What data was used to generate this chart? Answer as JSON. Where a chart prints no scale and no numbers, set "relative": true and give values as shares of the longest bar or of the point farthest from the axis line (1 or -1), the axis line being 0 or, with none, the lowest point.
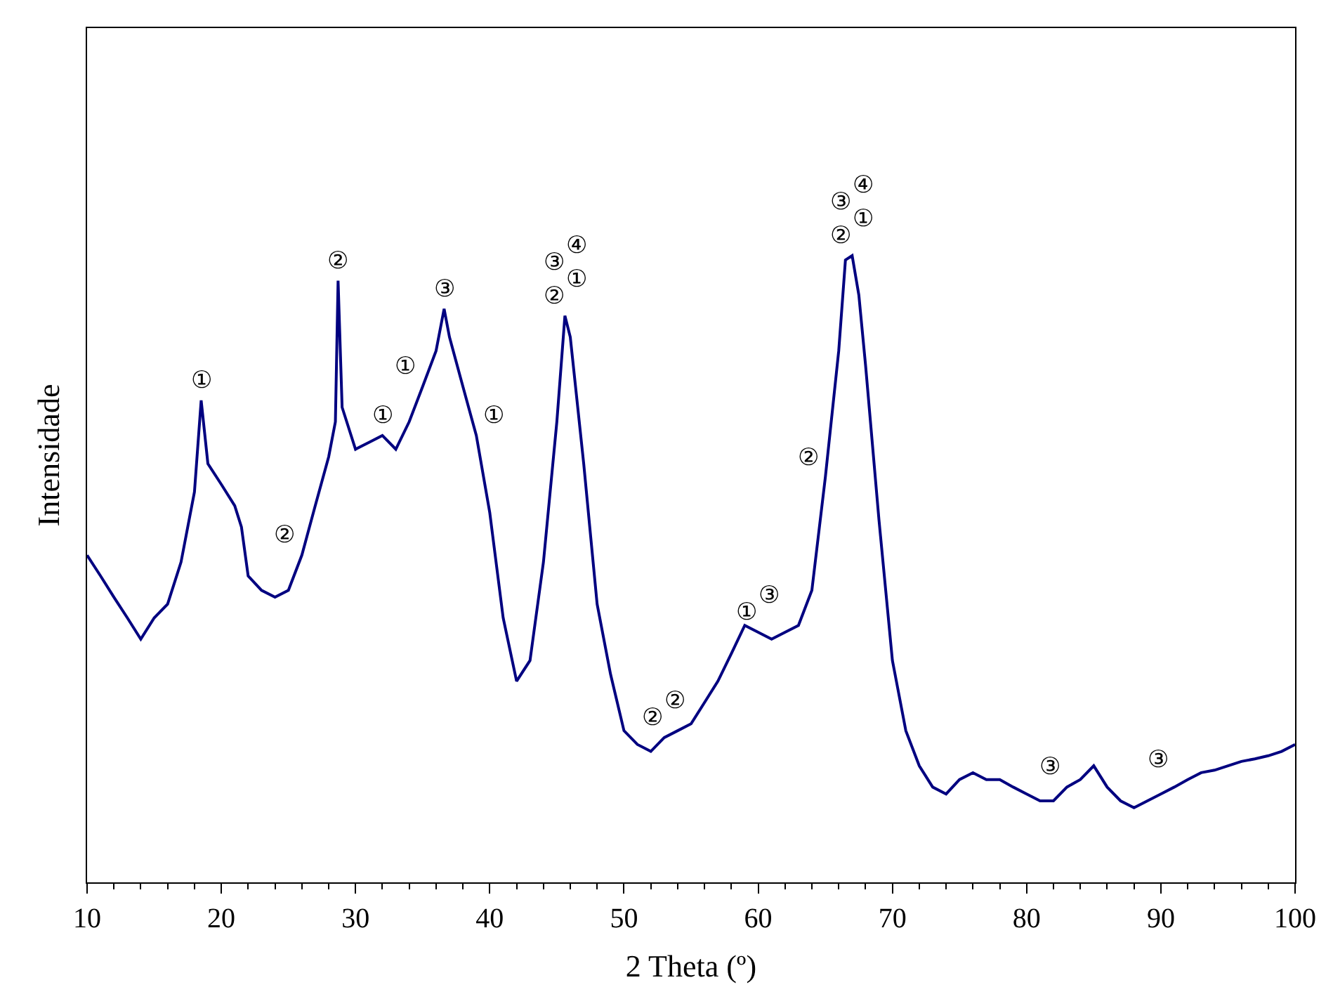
{
  "chart_data": {
    "type": "line",
    "relative": true,
    "xlabel": "2 Theta (º)",
    "ylabel": "Intensidade",
    "xlim": [
      10,
      100
    ],
    "xticks": [
      10,
      20,
      30,
      40,
      50,
      60,
      70,
      80,
      90,
      100
    ],
    "marker": "none",
    "line_style": "solid",
    "x": [
      10,
      11,
      12,
      13,
      14,
      15,
      16,
      17,
      18,
      18.5,
      19,
      20,
      21,
      21.5,
      22,
      23,
      24,
      25,
      26,
      27,
      28,
      28.5,
      28.7,
      29,
      30,
      31,
      32,
      33,
      34,
      35,
      36,
      36.6,
      37,
      38,
      39,
      40,
      41,
      42,
      43,
      44,
      45,
      45.6,
      46,
      47,
      48,
      49,
      50,
      51,
      52,
      53,
      54,
      55,
      56,
      57,
      58,
      59,
      60,
      61,
      62,
      63,
      64,
      65,
      66,
      66.5,
      67,
      67.5,
      68,
      69,
      70,
      71,
      72,
      73,
      74,
      75,
      76,
      77,
      78,
      79,
      80,
      81,
      82,
      83,
      84,
      85,
      86,
      87,
      88,
      89,
      90,
      91,
      92,
      93,
      94,
      95,
      96,
      97,
      98,
      99,
      100
    ],
    "series": [
      {
        "color": "#000080",
        "values": [
          0.522,
          0.489,
          0.455,
          0.422,
          0.388,
          0.422,
          0.444,
          0.511,
          0.623,
          0.769,
          0.668,
          0.635,
          0.601,
          0.567,
          0.489,
          0.466,
          0.455,
          0.466,
          0.522,
          0.601,
          0.679,
          0.735,
          0.96,
          0.758,
          0.691,
          0.702,
          0.713,
          0.691,
          0.735,
          0.791,
          0.848,
          0.915,
          0.87,
          0.791,
          0.713,
          0.59,
          0.422,
          0.321,
          0.354,
          0.511,
          0.735,
          0.904,
          0.87,
          0.668,
          0.444,
          0.332,
          0.242,
          0.22,
          0.209,
          0.231,
          0.242,
          0.253,
          0.287,
          0.321,
          0.365,
          0.41,
          0.399,
          0.388,
          0.399,
          0.41,
          0.466,
          0.646,
          0.848,
          0.993,
          1,
          0.937,
          0.825,
          0.578,
          0.354,
          0.242,
          0.186,
          0.152,
          0.141,
          0.164,
          0.175,
          0.164,
          0.164,
          0.152,
          0.141,
          0.13,
          0.13,
          0.152,
          0.164,
          0.186,
          0.152,
          0.13,
          0.119,
          0.13,
          0.141,
          0.152,
          0.164,
          0.175,
          0.179,
          0.186,
          0.193,
          0.197,
          0.202,
          0.209,
          0.22
        ]
      }
    ],
    "annotations": [
      {
        "text": "①",
        "x": 18.5,
        "y": 0.769
      },
      {
        "text": "②",
        "x": 28.7,
        "y": 0.96
      },
      {
        "text": "②",
        "x": 26,
        "y": 0.522
      },
      {
        "text": "①",
        "x": 32,
        "y": 0.713
      },
      {
        "text": "①",
        "x": 35,
        "y": 0.791
      },
      {
        "text": "③",
        "x": 36.6,
        "y": 0.915
      },
      {
        "text": "①",
        "x": 39,
        "y": 0.713
      },
      {
        "text": "②",
        "x": 45.6,
        "y": 0.904
      },
      {
        "text": "①",
        "x": 45.6,
        "y": 0.904
      },
      {
        "text": "③",
        "x": 45.6,
        "y": 0.904
      },
      {
        "text": "④",
        "x": 45.6,
        "y": 0.904
      },
      {
        "text": "②",
        "x": 53,
        "y": 0.231
      },
      {
        "text": "②",
        "x": 53,
        "y": 0.231
      },
      {
        "text": "①",
        "x": 60,
        "y": 0.399
      },
      {
        "text": "③",
        "x": 60,
        "y": 0.399
      },
      {
        "text": "②",
        "x": 65,
        "y": 0.646
      },
      {
        "text": "②",
        "x": 67,
        "y": 1
      },
      {
        "text": "①",
        "x": 67,
        "y": 1
      },
      {
        "text": "③",
        "x": 67,
        "y": 1
      },
      {
        "text": "④",
        "x": 67,
        "y": 1
      },
      {
        "text": "③",
        "x": 83,
        "y": 0.152
      },
      {
        "text": "③",
        "x": 91,
        "y": 0.164
      }
    ]
  }
}
